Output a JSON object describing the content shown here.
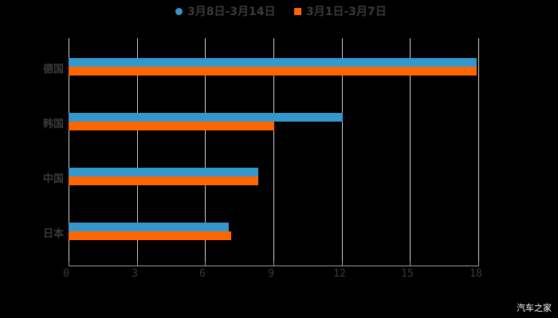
{
  "chart_data": {
    "type": "bar",
    "orientation": "horizontal",
    "title": "",
    "categories": [
      "德国",
      "韩国",
      "中国",
      "日本"
    ],
    "series": [
      {
        "name": "3月8日-3月14日",
        "color": "#3399cc",
        "values": [
          18.0,
          12.1,
          8.4,
          7.1
        ]
      },
      {
        "name": "3月1日-3月7日",
        "color": "#ff6600",
        "values": [
          18.0,
          9.1,
          8.4,
          7.2
        ]
      }
    ],
    "xlabel": "",
    "ylabel": "",
    "xlim": [
      0,
      18
    ],
    "xticks": [
      "0",
      "3",
      "6",
      "9",
      "12",
      "15",
      "18"
    ],
    "grid": true,
    "legend_position": "top"
  },
  "legend": {
    "series1": "3月8日-3月14日",
    "series2": "3月1日-3月7日"
  },
  "watermark": "汽车之家"
}
